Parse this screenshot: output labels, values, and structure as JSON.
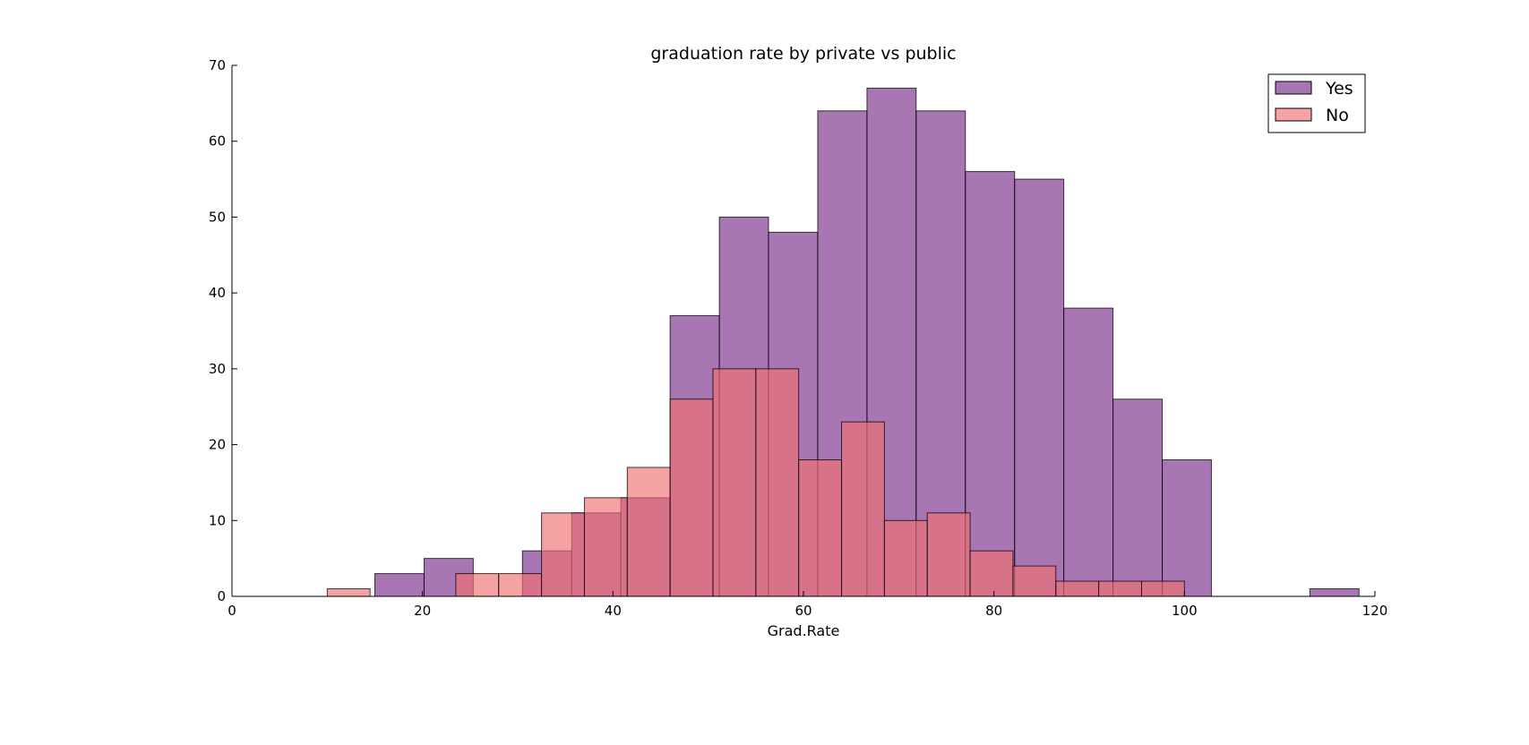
{
  "chart_data": {
    "type": "bar",
    "title": "graduation rate by private vs public",
    "xlabel": "Grad.Rate",
    "ylabel": "",
    "xlim": [
      0,
      120
    ],
    "ylim": [
      0,
      70
    ],
    "xticks": [
      0,
      20,
      40,
      60,
      80,
      100,
      120
    ],
    "yticks": [
      0,
      10,
      20,
      30,
      40,
      50,
      60,
      70
    ],
    "grid": false,
    "legend_position": "top-right",
    "series": [
      {
        "name": "Yes",
        "color": "#7b2c8c",
        "opacity": 0.65,
        "bin_edges": [
          15,
          20.17,
          25.33,
          30.5,
          35.67,
          40.83,
          46,
          51.17,
          56.33,
          61.5,
          66.67,
          71.83,
          77,
          82.17,
          87.33,
          92.5,
          97.67,
          102.83,
          108,
          113.17,
          118.33
        ],
        "counts": [
          3,
          5,
          0,
          6,
          11,
          13,
          37,
          50,
          48,
          64,
          67,
          64,
          56,
          55,
          38,
          26,
          18,
          0,
          0,
          1
        ]
      },
      {
        "name": "No",
        "color": "#f07070",
        "opacity": 0.65,
        "bin_edges": [
          10,
          14.5,
          19,
          23.5,
          28,
          32.5,
          37,
          41.5,
          46,
          50.5,
          55,
          59.5,
          64,
          68.5,
          73,
          77.5,
          82,
          86.5,
          91,
          95.5,
          100
        ],
        "counts": [
          1,
          0,
          0,
          3,
          3,
          11,
          13,
          17,
          26,
          30,
          30,
          18,
          23,
          10,
          11,
          6,
          4,
          2,
          2,
          2
        ]
      }
    ]
  }
}
